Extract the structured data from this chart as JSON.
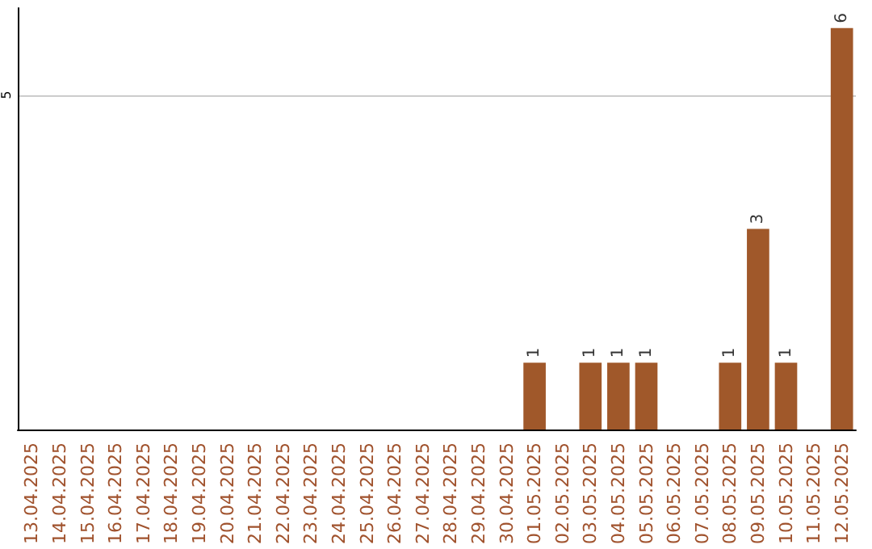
{
  "chart_data": {
    "type": "bar",
    "categories": [
      "13.04.2025",
      "14.04.2025",
      "15.04.2025",
      "16.04.2025",
      "17.04.2025",
      "18.04.2025",
      "19.04.2025",
      "20.04.2025",
      "21.04.2025",
      "22.04.2025",
      "23.04.2025",
      "24.04.2025",
      "25.04.2025",
      "26.04.2025",
      "27.04.2025",
      "28.04.2025",
      "29.04.2025",
      "30.04.2025",
      "01.05.2025",
      "02.05.2025",
      "03.05.2025",
      "04.05.2025",
      "05.05.2025",
      "06.05.2025",
      "07.05.2025",
      "08.05.2025",
      "09.05.2025",
      "10.05.2025",
      "11.05.2025",
      "12.05.2025"
    ],
    "values": [
      null,
      null,
      null,
      null,
      null,
      null,
      null,
      null,
      null,
      null,
      null,
      null,
      null,
      null,
      null,
      null,
      null,
      null,
      1,
      null,
      1,
      1,
      1,
      null,
      null,
      1,
      3,
      1,
      null,
      6
    ],
    "color": "#a0582a",
    "ylim": [
      0,
      6.3
    ],
    "yticks": [
      5
    ],
    "grid": "y",
    "data_labels": true
  }
}
